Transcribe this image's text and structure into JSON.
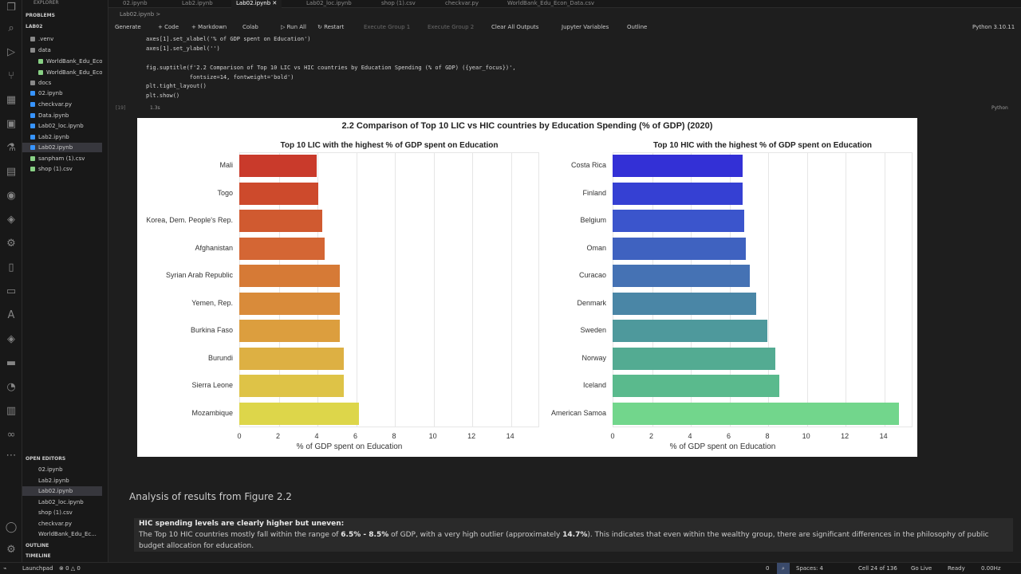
{
  "sidebar": {
    "header": "EXPLORER",
    "problems": "PROBLEMS",
    "root": "LAB02",
    "items": [
      {
        "label": ".venv",
        "color": "#8a8a8a"
      },
      {
        "label": "data",
        "color": "#8a8a8a"
      },
      {
        "label": "WorldBank_Edu_Eco...",
        "color": "#89d185"
      },
      {
        "label": "WorldBank_Edu_Eco...",
        "color": "#89d185"
      },
      {
        "label": "docs",
        "color": "#8a8a8a"
      },
      {
        "label": "02.ipynb",
        "color": "#3794ff"
      },
      {
        "label": "checkvar.py",
        "color": "#3794ff"
      },
      {
        "label": "Data.ipynb",
        "color": "#3794ff"
      },
      {
        "label": "Lab02_loc.ipynb",
        "color": "#3794ff"
      },
      {
        "label": "Lab2.ipynb",
        "color": "#3794ff"
      },
      {
        "label": "Lab02.ipynb",
        "color": "#3794ff"
      },
      {
        "label": "sanpham (1).csv",
        "color": "#89d185"
      },
      {
        "label": "shop (1).csv",
        "color": "#89d185"
      }
    ],
    "open_editors_title": "OPEN EDITORS",
    "open_editors": [
      {
        "label": "02.ipynb"
      },
      {
        "label": "Lab2.ipynb"
      },
      {
        "label": "Lab02.ipynb"
      },
      {
        "label": "Lab02_loc.ipynb"
      },
      {
        "label": "shop (1).csv"
      },
      {
        "label": "checkvar.py"
      },
      {
        "label": "WorldBank_Edu_Ec..."
      }
    ],
    "outline": "OUTLINE",
    "timeline": "TIMELINE"
  },
  "tabs": [
    {
      "label": "02.ipynb"
    },
    {
      "label": "Lab2.ipynb"
    },
    {
      "label": "Lab02.ipynb ✕"
    },
    {
      "label": "Lab02_loc.ipynb"
    },
    {
      "label": "shop (1).csv"
    },
    {
      "label": "checkvar.py"
    },
    {
      "label": "WorldBank_Edu_Econ_Data.csv"
    }
  ],
  "breadcrumb": "Lab02.ipynb  >",
  "toolbar": {
    "generate": "Generate",
    "code": "+ Code",
    "markdown": "+ Markdown",
    "colab": "Colab",
    "run_all": "▷ Run All",
    "restart": "↻ Restart",
    "exec1": "Execute Group 1",
    "exec2": "Execute Group 2",
    "clear": "Clear All Outputs",
    "jupyter_vars": "Jupyter Variables",
    "outline": "Outline",
    "kernel": "Python 3.10.11"
  },
  "code_lines": [
    "axes[1].set_xlabel('% of GDP spent on Education')",
    "axes[1].set_ylabel('')",
    "",
    "fig.suptitle(f'2.2 Comparison of Top 10 LIC vs HIC countries by Education Spending (% of GDP) ({year_focus})',",
    "             fontsize=14, fontweight='bold')",
    "plt.tight_layout()",
    "plt.show()"
  ],
  "cell_meta": {
    "exec_count": "[19]",
    "duration": "1.3s",
    "language": "Python"
  },
  "chart_data": {
    "type": "bar",
    "title": "2.2 Comparison of Top 10 LIC vs HIC countries by Education Spending (% of GDP) (2020)",
    "subplots": [
      {
        "title": "Top 10 LIC with the highest % of GDP spent on Education",
        "xlabel": "% of GDP spent on Education",
        "xlim": [
          0,
          15
        ],
        "xticks": [
          0,
          2,
          4,
          6,
          8,
          10,
          12,
          14
        ],
        "categories": [
          "Mali",
          "Togo",
          "Korea, Dem. People's Rep.",
          "Afghanistan",
          "Syrian Arab Republic",
          "Yemen, Rep.",
          "Burkina Faso",
          "Burundi",
          "Sierra Leone",
          "Mozambique"
        ],
        "values": [
          4.0,
          4.1,
          4.3,
          4.4,
          5.2,
          5.2,
          5.2,
          5.4,
          5.4,
          6.2
        ],
        "colors": [
          "#c93a2b",
          "#cd4a2c",
          "#d05a30",
          "#d46634",
          "#d67a36",
          "#d98b3a",
          "#dc9e3e",
          "#ddb043",
          "#dec347",
          "#ddd64a"
        ]
      },
      {
        "title": "Top 10 HIC with the highest % of GDP spent on Education",
        "xlabel": "% of GDP spent on Education",
        "xlim": [
          0,
          15
        ],
        "xticks": [
          0,
          2,
          4,
          6,
          8,
          10,
          12,
          14
        ],
        "categories": [
          "Costa Rica",
          "Finland",
          "Belgium",
          "Oman",
          "Curacao",
          "Denmark",
          "Sweden",
          "Norway",
          "Iceland",
          "American Samoa"
        ],
        "values": [
          6.7,
          6.7,
          6.8,
          6.9,
          7.1,
          7.4,
          8.0,
          8.4,
          8.6,
          14.8
        ],
        "colors": [
          "#3330d6",
          "#3540d3",
          "#3b55cc",
          "#3f62c0",
          "#4572b4",
          "#4a86a6",
          "#4e999c",
          "#53ab92",
          "#5aba8d",
          "#72d68c"
        ]
      }
    ]
  },
  "markdown": {
    "heading": "Analysis of results from Figure 2.2",
    "bold_title": "HIC spending levels are clearly higher but uneven:",
    "line1_a": "The Top 10 HIC countries mostly fall within the range of ",
    "line1_b": "6.5% - 8.5%",
    "line1_c": " of GDP, with a very high outlier (approximately ",
    "line1_d": "14.7%",
    "line1_e": "). This indicates that even within the wealthy group, there are significant differences in the philosophy of public",
    "line2": "budget allocation for education."
  },
  "status": {
    "launchpad": "Launchpad",
    "errors": "⊗ 0 △ 0",
    "zero": "0",
    "spaces": "Spaces: 4",
    "cell": "Cell 24 of 136",
    "golive": "Go Live",
    "ready": "Ready",
    "hz": "0.00Hz"
  }
}
